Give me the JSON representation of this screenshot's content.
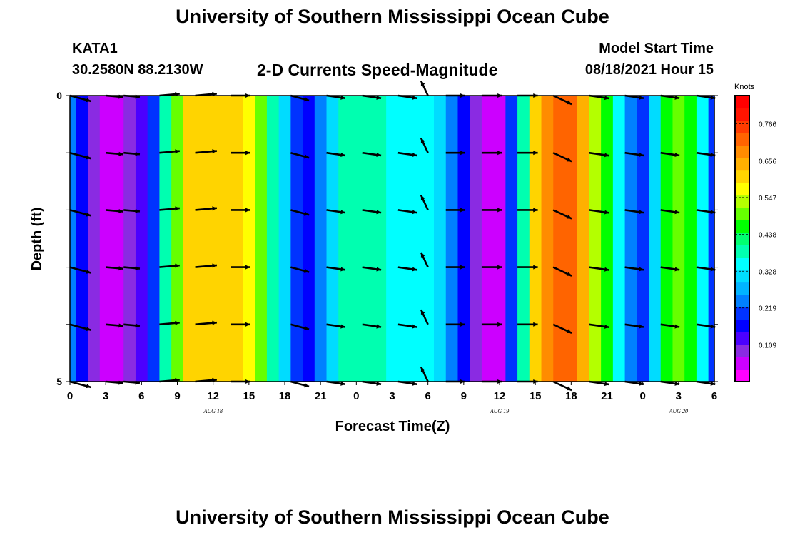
{
  "header": {
    "title": "University of Southern Mississippi Ocean Cube",
    "station": "KATA1",
    "coords": "30.2580N  88.2130W",
    "subtitle": "2-D Currents Speed-Magnitude",
    "model_label": "Model Start Time",
    "model_time": "08/18/2021 Hour 15"
  },
  "footer": {
    "title": "University of Southern Mississippi Ocean Cube"
  },
  "colors": {
    "palette": [
      "#ff00ff",
      "#cc00ff",
      "#8a2be2",
      "#4b00ff",
      "#0000ff",
      "#0033ff",
      "#0080ff",
      "#00b4ff",
      "#00dcff",
      "#00ffff",
      "#00ffb0",
      "#00ff70",
      "#00ff00",
      "#66ff00",
      "#b4ff00",
      "#ffff00",
      "#ffd400",
      "#ffb000",
      "#ff8c00",
      "#ff6400",
      "#ff3c00",
      "#ff1400",
      "#ff0000"
    ]
  },
  "chart_data": {
    "type": "heatmap",
    "title": "2-D Currents Speed-Magnitude",
    "xlabel": "Forecast Time(Z)",
    "ylabel": "Depth (ft)",
    "x_ticks": [
      "0",
      "3",
      "6",
      "9",
      "12",
      "15",
      "18",
      "21",
      "0",
      "3",
      "6",
      "9",
      "12",
      "15",
      "18",
      "21",
      "0",
      "3",
      "6"
    ],
    "x_range_hours": [
      0,
      54
    ],
    "date_labels": [
      {
        "text": "AUG 18",
        "hour": 12
      },
      {
        "text": "AUG 19",
        "hour": 36
      },
      {
        "text": "AUG 20",
        "hour": 51
      }
    ],
    "y_ticks": [
      "0",
      "5"
    ],
    "y_range_ft": [
      0,
      5
    ],
    "colorbar": {
      "unit": "Knots",
      "ticks": [
        "0.766",
        "0.656",
        "0.547",
        "0.438",
        "0.328",
        "0.219",
        "0.109"
      ],
      "tick_values": [
        0.766,
        0.656,
        0.547,
        0.438,
        0.328,
        0.219,
        0.109
      ],
      "range": [
        0.0,
        0.85
      ]
    },
    "column_hours": [
      0,
      1,
      2,
      3,
      4,
      5,
      6,
      7,
      8,
      9,
      10,
      11,
      12,
      13,
      14,
      15,
      16,
      17,
      18,
      19,
      20,
      21,
      22,
      23,
      24,
      25,
      26,
      27,
      28,
      29,
      30,
      31,
      32,
      33,
      34,
      35,
      36,
      37,
      38,
      39,
      40,
      41,
      42,
      43,
      44,
      45,
      46,
      47,
      48,
      49,
      50,
      51,
      52,
      53,
      54
    ],
    "column_speeds_knots": [
      0.25,
      0.16,
      0.07,
      0.03,
      0.03,
      0.06,
      0.12,
      0.2,
      0.4,
      0.5,
      0.6,
      0.62,
      0.63,
      0.63,
      0.62,
      0.58,
      0.5,
      0.4,
      0.3,
      0.2,
      0.16,
      0.22,
      0.32,
      0.38,
      0.4,
      0.39,
      0.38,
      0.36,
      0.35,
      0.34,
      0.33,
      0.3,
      0.24,
      0.16,
      0.08,
      0.03,
      0.04,
      0.2,
      0.38,
      0.6,
      0.68,
      0.72,
      0.72,
      0.66,
      0.55,
      0.45,
      0.35,
      0.25,
      0.2,
      0.3,
      0.45,
      0.5,
      0.45,
      0.35,
      0.2
    ],
    "vector_hours": [
      0,
      3,
      4.5,
      7.5,
      10.5,
      13.5,
      18.5,
      21.5,
      24.5,
      27.5,
      30,
      31.5,
      34.5,
      37.5,
      40.5,
      43.5,
      46.5,
      49.5,
      52.5
    ],
    "vector_depths_ft": [
      0,
      1,
      2,
      3,
      4,
      5
    ],
    "vector_angles_deg": [
      -15,
      -5,
      -5,
      5,
      5,
      0,
      -15,
      -8,
      -8,
      -8,
      115,
      0,
      0,
      0,
      -25,
      -8,
      -8,
      -8,
      -8
    ],
    "vector_lengths": [
      0.8,
      0.65,
      0.6,
      0.75,
      0.8,
      0.7,
      0.7,
      0.7,
      0.7,
      0.7,
      0.6,
      0.7,
      0.75,
      0.75,
      0.75,
      0.75,
      0.7,
      0.7,
      0.7
    ]
  }
}
